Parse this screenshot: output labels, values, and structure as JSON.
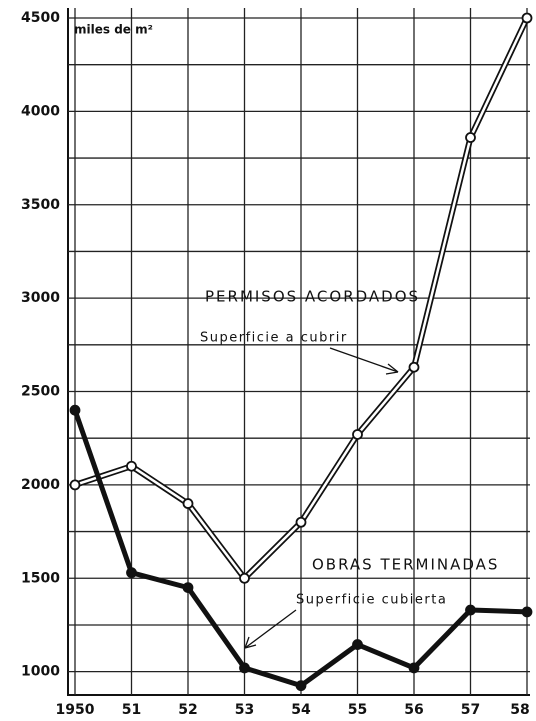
{
  "chart_data": {
    "type": "line",
    "y_unit_label": "miles de m²",
    "categories": [
      "1950",
      "51",
      "52",
      "53",
      "54",
      "55",
      "56",
      "57",
      "58"
    ],
    "series": [
      {
        "name": "PERMISOS ACORDADOS",
        "description": "Superficie a cubrir",
        "color": "#ffffff",
        "values": [
          2000,
          2100,
          1900,
          1500,
          1800,
          2270,
          2630,
          3860,
          4500
        ]
      },
      {
        "name": "OBRAS TERMINADAS",
        "description": "Superficie cubierta",
        "color": "#111111",
        "values": [
          2400,
          1530,
          1450,
          1020,
          925,
          1145,
          1020,
          1330,
          1320
        ]
      }
    ],
    "ylim": [
      875,
      4500
    ],
    "yticks": [
      1000,
      1500,
      2000,
      2500,
      3000,
      3500,
      4000,
      4500
    ],
    "yminorticks": [
      1250,
      1750,
      2250,
      2750,
      3250,
      3750,
      4250
    ],
    "grid": true
  }
}
